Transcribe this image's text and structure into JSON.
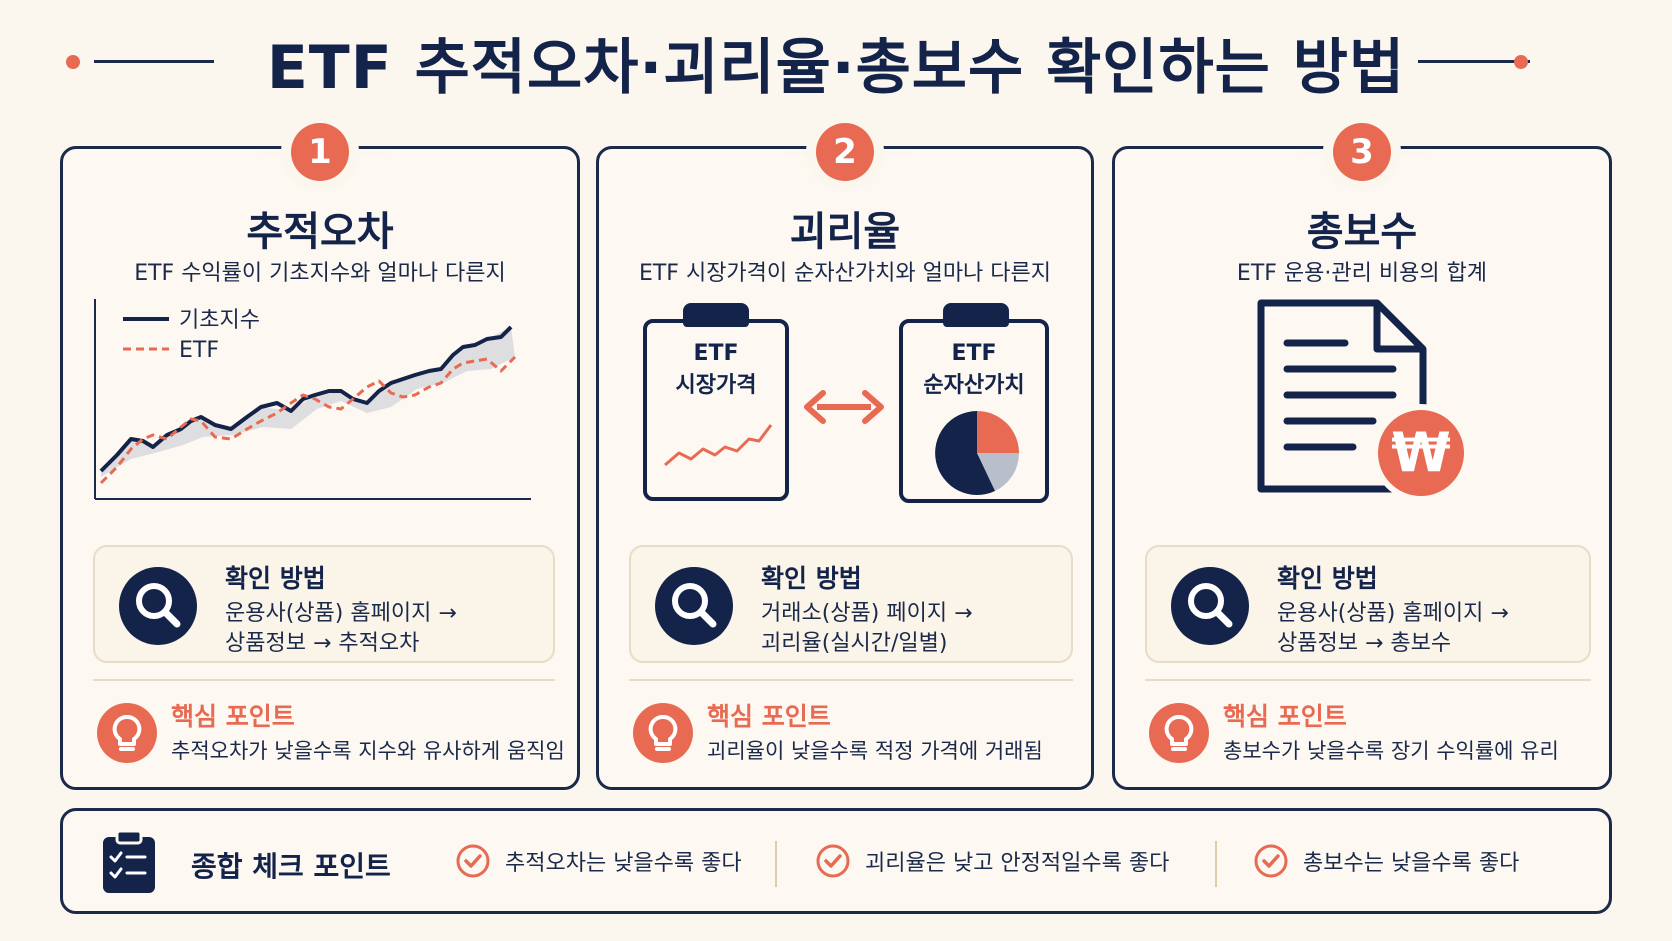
{
  "title": "ETF 추적오차·괴리율·총보수 확인하는 방법",
  "colors": {
    "accent": "#e86a52",
    "navy": "#13234a",
    "bg": "#fbf6ee",
    "gray": "#b9bfca"
  },
  "cards": [
    {
      "number": "1",
      "heading": "추적오차",
      "desc": "ETF 수익률이 기초지수와 얼마나 다른지",
      "legend": [
        "기초지수",
        "ETF"
      ],
      "how_title": "확인 방법",
      "how_lines": [
        "운용사(상품) 홈페이지 →",
        "상품정보 → 추적오차"
      ],
      "key_title": "핵심 포인트",
      "key_text": "추적오차가 낮을수록 지수와 유사하게 움직임"
    },
    {
      "number": "2",
      "heading": "괴리율",
      "desc": "ETF 시장가격이 순자산가치와 얼마나 다른지",
      "board_left": [
        "ETF",
        "시장가격"
      ],
      "board_right": [
        "ETF",
        "순자산가치"
      ],
      "how_title": "확인 방법",
      "how_lines": [
        "거래소(상품) 페이지 →",
        "괴리율(실시간/일별)"
      ],
      "key_title": "핵심 포인트",
      "key_text": "괴리율이 낮을수록 적정 가격에 거래됨"
    },
    {
      "number": "3",
      "heading": "총보수",
      "desc": "ETF 운용·관리 비용의 합계",
      "won_symbol": "₩",
      "how_title": "확인 방법",
      "how_lines": [
        "운용사(상품) 홈페이지 →",
        "상품정보 → 총보수"
      ],
      "key_title": "핵심 포인트",
      "key_text": "총보수가 낮을수록 장기 수익률에 유리"
    }
  ],
  "summary": {
    "title": "종합 체크 포인트",
    "items": [
      "추적오차는 낮을수록 좋다",
      "괴리율은 낮고 안정적일수록 좋다",
      "총보수는 낮을수록 좋다"
    ]
  }
}
